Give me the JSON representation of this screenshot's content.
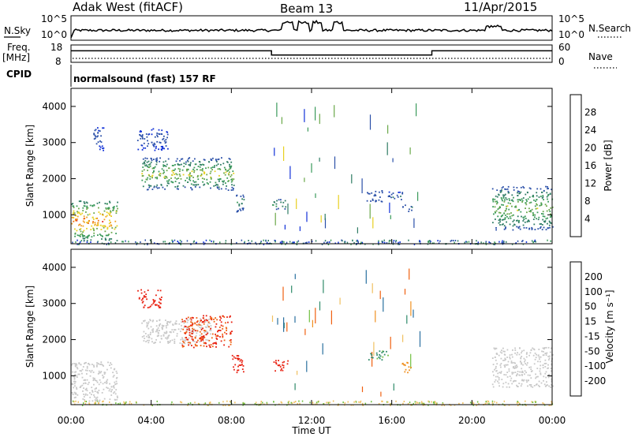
{
  "header": {
    "station": "Adak West (fitACF)",
    "beam": "Beam 13",
    "date": "11/Apr/2015"
  },
  "top_panels": {
    "noise_left_label": "N.Sky",
    "noise_left_ticks": [
      "10^5",
      "10^0"
    ],
    "noise_right_label": "N.Search",
    "noise_right_ticks": [
      "10^5",
      "10^0"
    ],
    "freq_label_line1": "Freq.",
    "freq_label_line2": "[MHz]",
    "freq_ticks": [
      "18",
      "8"
    ],
    "nave_label": "Nave",
    "nave_ticks": [
      "60",
      "0"
    ],
    "cpid_label": "CPID",
    "cpid_text": "normalsound (fast) 157 RF"
  },
  "panels": {
    "power": {
      "ylabel": "Slant Range [km]",
      "yticks": [
        "4000",
        "3000",
        "2000",
        "1000"
      ],
      "cbar_label": "Power [dB]",
      "cbar_ticks": [
        "28",
        "24",
        "20",
        "16",
        "12",
        "8",
        "4"
      ],
      "cbar_colors": [
        "#1030d8",
        "#2a4fa8",
        "#2f7c64",
        "#3a9a5a",
        "#6aa84a",
        "#e8d020",
        "#f0a020",
        "#f07010",
        "#e82010"
      ]
    },
    "velocity": {
      "ylabel": "Slant Range [km]",
      "yticks": [
        "4000",
        "3000",
        "2000",
        "1000"
      ],
      "cbar_label": "Velocity [m s⁻¹]",
      "cbar_ticks": [
        "200",
        "100",
        "50",
        "15",
        "-15",
        "-50",
        "-100",
        "-200"
      ],
      "cbar_colors": [
        "#2040c0",
        "#2a70a0",
        "#2f8a6a",
        "#70c040",
        "#c8c8c8",
        "#f0c060",
        "#f09020",
        "#f06010",
        "#e82010"
      ]
    }
  },
  "xaxis": {
    "label": "Time UT",
    "ticks": [
      "00:00",
      "04:00",
      "08:00",
      "12:00",
      "16:00",
      "20:00",
      "00:00"
    ]
  },
  "chart_data": {
    "type": "heatmap",
    "xlabel": "Time UT",
    "ylabel": "Slant Range [km]",
    "xlim_hours": [
      0,
      24
    ],
    "ylim_km": [
      200,
      4500
    ],
    "freq_mhz": {
      "segments": [
        {
          "from_hour": 0,
          "to_hour": 10,
          "value": 15
        },
        {
          "from_hour": 10,
          "to_hour": 18,
          "value": 12
        },
        {
          "from_hour": 18,
          "to_hour": 24,
          "value": 15
        }
      ]
    },
    "nave": 10,
    "power_blobs": [
      {
        "t0": 0.0,
        "t1": 2.3,
        "r0": 300,
        "r1": 1400,
        "level_db": 20,
        "peak_db": 30
      },
      {
        "t0": 1.1,
        "t1": 1.6,
        "r0": 2800,
        "r1": 3500,
        "level_db": 6
      },
      {
        "t0": 3.3,
        "t1": 4.8,
        "r0": 2800,
        "r1": 3400,
        "level_db": 6
      },
      {
        "t0": 3.5,
        "t1": 8.1,
        "r0": 1700,
        "r1": 2600,
        "level_db": 10,
        "peak_db": 22
      },
      {
        "t0": 8.1,
        "t1": 8.6,
        "r0": 1100,
        "r1": 1600,
        "level_db": 12
      },
      {
        "t0": 10.0,
        "t1": 10.7,
        "r0": 1150,
        "r1": 1450,
        "level_db": 14
      },
      {
        "t0": 14.7,
        "t1": 15.5,
        "r0": 1350,
        "r1": 1700,
        "level_db": 8
      },
      {
        "t0": 15.8,
        "t1": 16.6,
        "r0": 1400,
        "r1": 1650,
        "level_db": 8
      },
      {
        "t0": 16.5,
        "t1": 17.0,
        "r0": 1100,
        "r1": 1300,
        "level_db": 10
      },
      {
        "t0": 21.0,
        "t1": 24.0,
        "r0": 600,
        "r1": 1800,
        "level_db": 12,
        "peak_db": 20
      }
    ],
    "velocity_blobs": [
      {
        "t0": 0.0,
        "t1": 2.3,
        "r0": 300,
        "r1": 1400,
        "velocity": 0
      },
      {
        "t0": 3.3,
        "t1": 4.5,
        "r0": 2900,
        "r1": 3400,
        "velocity": -220
      },
      {
        "t0": 3.5,
        "t1": 7.0,
        "r0": 1900,
        "r1": 2600,
        "velocity": 0
      },
      {
        "t0": 5.5,
        "t1": 8.0,
        "r0": 1800,
        "r1": 2700,
        "velocity": -200
      },
      {
        "t0": 8.0,
        "t1": 8.7,
        "r0": 1100,
        "r1": 1600,
        "velocity": -220
      },
      {
        "t0": 10.0,
        "t1": 10.8,
        "r0": 1150,
        "r1": 1450,
        "velocity": -220
      },
      {
        "t0": 14.8,
        "t1": 15.8,
        "r0": 1450,
        "r1": 1700,
        "velocity": 60
      },
      {
        "t0": 16.5,
        "t1": 17.0,
        "r0": 1100,
        "r1": 1400,
        "velocity": -80
      },
      {
        "t0": 21.0,
        "t1": 24.0,
        "r0": 700,
        "r1": 1800,
        "velocity": 0
      }
    ]
  }
}
